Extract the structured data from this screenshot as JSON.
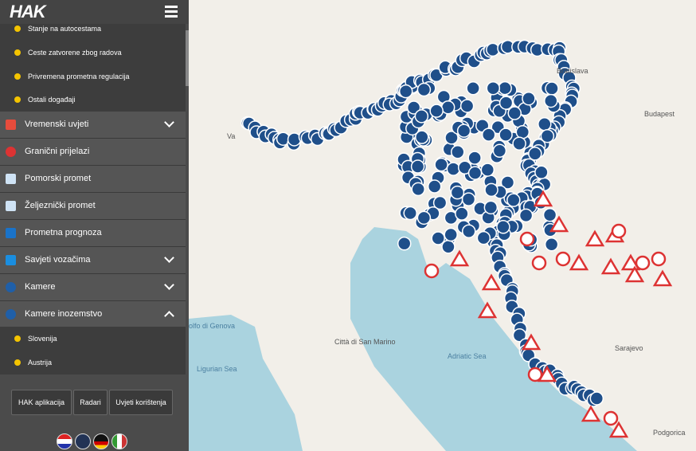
{
  "header": {
    "logo": "HAK"
  },
  "menu": {
    "subitems": [
      "Stanje na autocestama",
      "Ceste zatvorene zbog radova",
      "Privremena prometna regulacija",
      "Ostali događaji"
    ],
    "items": [
      "Vremenski uvjeti",
      "Granični prijelazi",
      "Pomorski promet",
      "Željeznički promet",
      "Prometna prognoza",
      "Savjeti vozačima",
      "Kamere",
      "Kamere inozemstvo"
    ],
    "country_items": [
      "Slovenija",
      "Austrija"
    ]
  },
  "buttons": [
    "HAK aplikacija",
    "Radari",
    "Uvjeti korištenja"
  ],
  "map": {
    "labels": [
      "Bratislava",
      "Budapest",
      "Città di San Marino",
      "Adriatic Sea",
      "Ligurian Sea",
      "Sarajevo",
      "Podgorica",
      "olfo di Genova",
      "Va"
    ]
  }
}
